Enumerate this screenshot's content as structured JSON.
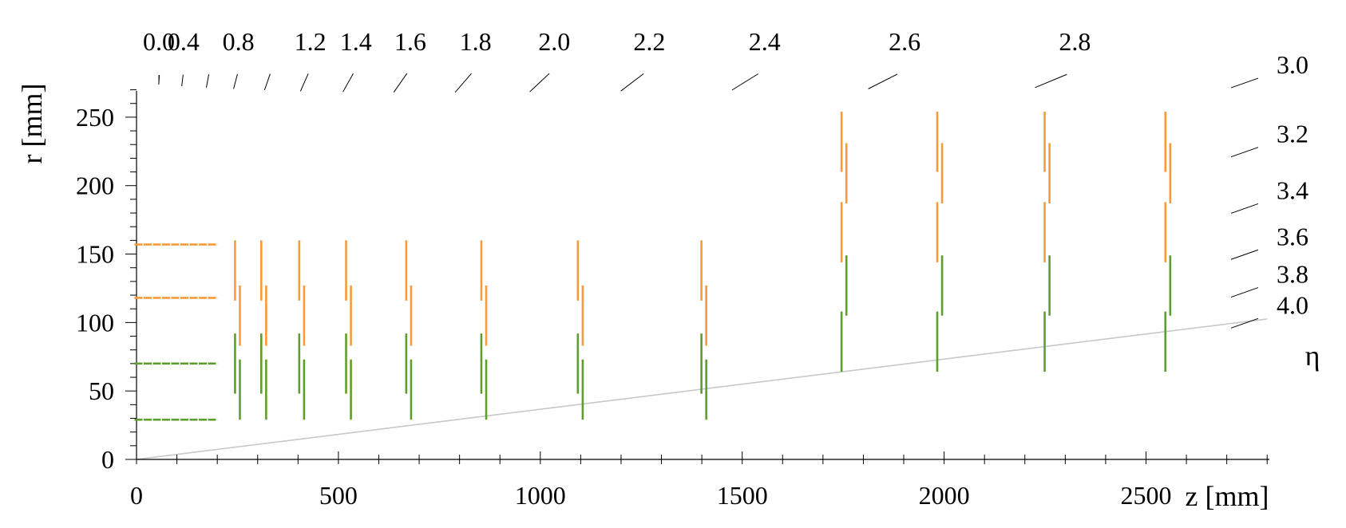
{
  "chart_data": {
    "type": "line",
    "xlabel": "z [mm]",
    "ylabel": "r [mm]",
    "xlim": [
      0,
      2800
    ],
    "ylim": [
      0,
      270
    ],
    "x_ticks": [
      0,
      500,
      1000,
      1500,
      2000,
      2500
    ],
    "x_tick_labels": [
      "0",
      "500",
      "1000",
      "1500",
      "2000",
      "2500"
    ],
    "y_ticks": [
      0,
      50,
      100,
      150,
      200,
      250
    ],
    "y_tick_labels": [
      "0",
      "50",
      "100",
      "150",
      "200",
      "250"
    ],
    "eta_axis_label": "η",
    "eta_top_labels": [
      "0.0",
      "0.4",
      "0.8",
      "1.2",
      "1.4",
      "1.6",
      "1.8",
      "2.0",
      "2.2",
      "2.4",
      "2.6",
      "2.8"
    ],
    "eta_top_values": [
      0.0,
      0.4,
      0.8,
      1.2,
      1.4,
      1.6,
      1.8,
      2.0,
      2.2,
      2.4,
      2.6,
      2.8
    ],
    "eta_top_minor": [
      0.2,
      0.6,
      1.0
    ],
    "eta_right_labels": [
      "3.0",
      "3.2",
      "3.4",
      "3.6",
      "3.8",
      "4.0"
    ],
    "eta_right_values": [
      3.0,
      3.2,
      3.4,
      3.6,
      3.8,
      4.0
    ],
    "reference_line": {
      "eta": 4.0
    },
    "colors": {
      "outer": "#f79a3a",
      "inner": "#5e9e2c",
      "reference": "#c8c8c8"
    },
    "barrel_layers": [
      {
        "r": 157,
        "z_min": -5,
        "z_max": 200,
        "color": "outer"
      },
      {
        "r": 118,
        "z_min": -5,
        "z_max": 200,
        "color": "outer"
      },
      {
        "r": 70,
        "z_min": -5,
        "z_max": 200,
        "color": "inner"
      },
      {
        "r": 29,
        "z_min": -5,
        "z_max": 200,
        "color": "inner"
      }
    ],
    "disks": [
      {
        "z": 250,
        "segments": [
          {
            "dz": -6,
            "r_min": 48,
            "r_max": 92,
            "color": "inner"
          },
          {
            "dz": 6,
            "r_min": 29,
            "r_max": 73,
            "color": "inner"
          },
          {
            "dz": 6,
            "r_min": 83,
            "r_max": 127,
            "color": "outer"
          },
          {
            "dz": -6,
            "r_min": 116,
            "r_max": 160,
            "color": "outer"
          }
        ]
      },
      {
        "z": 315,
        "segments": [
          {
            "dz": -6,
            "r_min": 48,
            "r_max": 92,
            "color": "inner"
          },
          {
            "dz": 6,
            "r_min": 29,
            "r_max": 73,
            "color": "inner"
          },
          {
            "dz": 6,
            "r_min": 83,
            "r_max": 127,
            "color": "outer"
          },
          {
            "dz": -6,
            "r_min": 116,
            "r_max": 160,
            "color": "outer"
          }
        ]
      },
      {
        "z": 409,
        "segments": [
          {
            "dz": -6,
            "r_min": 48,
            "r_max": 92,
            "color": "inner"
          },
          {
            "dz": 6,
            "r_min": 29,
            "r_max": 73,
            "color": "inner"
          },
          {
            "dz": 6,
            "r_min": 83,
            "r_max": 127,
            "color": "outer"
          },
          {
            "dz": -6,
            "r_min": 116,
            "r_max": 160,
            "color": "outer"
          }
        ]
      },
      {
        "z": 525,
        "segments": [
          {
            "dz": -6,
            "r_min": 48,
            "r_max": 92,
            "color": "inner"
          },
          {
            "dz": 6,
            "r_min": 29,
            "r_max": 73,
            "color": "inner"
          },
          {
            "dz": 6,
            "r_min": 83,
            "r_max": 127,
            "color": "outer"
          },
          {
            "dz": -6,
            "r_min": 116,
            "r_max": 160,
            "color": "outer"
          }
        ]
      },
      {
        "z": 674,
        "segments": [
          {
            "dz": -6,
            "r_min": 48,
            "r_max": 92,
            "color": "inner"
          },
          {
            "dz": 6,
            "r_min": 29,
            "r_max": 73,
            "color": "inner"
          },
          {
            "dz": 6,
            "r_min": 83,
            "r_max": 127,
            "color": "outer"
          },
          {
            "dz": -6,
            "r_min": 116,
            "r_max": 160,
            "color": "outer"
          }
        ]
      },
      {
        "z": 860,
        "segments": [
          {
            "dz": -6,
            "r_min": 48,
            "r_max": 92,
            "color": "inner"
          },
          {
            "dz": 6,
            "r_min": 29,
            "r_max": 73,
            "color": "inner"
          },
          {
            "dz": 6,
            "r_min": 83,
            "r_max": 127,
            "color": "outer"
          },
          {
            "dz": -6,
            "r_min": 116,
            "r_max": 160,
            "color": "outer"
          }
        ]
      },
      {
        "z": 1099,
        "segments": [
          {
            "dz": -6,
            "r_min": 48,
            "r_max": 92,
            "color": "inner"
          },
          {
            "dz": 6,
            "r_min": 29,
            "r_max": 73,
            "color": "inner"
          },
          {
            "dz": 6,
            "r_min": 83,
            "r_max": 127,
            "color": "outer"
          },
          {
            "dz": -6,
            "r_min": 116,
            "r_max": 160,
            "color": "outer"
          }
        ]
      },
      {
        "z": 1405,
        "segments": [
          {
            "dz": -6,
            "r_min": 48,
            "r_max": 92,
            "color": "inner"
          },
          {
            "dz": 6,
            "r_min": 29,
            "r_max": 73,
            "color": "inner"
          },
          {
            "dz": 6,
            "r_min": 83,
            "r_max": 127,
            "color": "outer"
          },
          {
            "dz": -6,
            "r_min": 116,
            "r_max": 160,
            "color": "outer"
          }
        ]
      },
      {
        "z": 1752,
        "segments": [
          {
            "dz": -6,
            "r_min": 64,
            "r_max": 108,
            "color": "inner"
          },
          {
            "dz": 6,
            "r_min": 105,
            "r_max": 149,
            "color": "inner"
          },
          {
            "dz": -6,
            "r_min": 144,
            "r_max": 188,
            "color": "outer"
          },
          {
            "dz": 6,
            "r_min": 187,
            "r_max": 231,
            "color": "outer"
          },
          {
            "dz": -6,
            "r_min": 210,
            "r_max": 254,
            "color": "outer"
          }
        ]
      },
      {
        "z": 1989,
        "segments": [
          {
            "dz": -6,
            "r_min": 64,
            "r_max": 108,
            "color": "inner"
          },
          {
            "dz": 6,
            "r_min": 105,
            "r_max": 149,
            "color": "inner"
          },
          {
            "dz": -6,
            "r_min": 144,
            "r_max": 188,
            "color": "outer"
          },
          {
            "dz": 6,
            "r_min": 187,
            "r_max": 231,
            "color": "outer"
          },
          {
            "dz": -6,
            "r_min": 210,
            "r_max": 254,
            "color": "outer"
          }
        ]
      },
      {
        "z": 2255,
        "segments": [
          {
            "dz": -6,
            "r_min": 64,
            "r_max": 108,
            "color": "inner"
          },
          {
            "dz": 6,
            "r_min": 105,
            "r_max": 149,
            "color": "inner"
          },
          {
            "dz": -6,
            "r_min": 144,
            "r_max": 188,
            "color": "outer"
          },
          {
            "dz": 6,
            "r_min": 187,
            "r_max": 231,
            "color": "outer"
          },
          {
            "dz": -6,
            "r_min": 210,
            "r_max": 254,
            "color": "outer"
          }
        ]
      },
      {
        "z": 2554,
        "segments": [
          {
            "dz": -6,
            "r_min": 64,
            "r_max": 108,
            "color": "inner"
          },
          {
            "dz": 6,
            "r_min": 105,
            "r_max": 149,
            "color": "inner"
          },
          {
            "dz": -6,
            "r_min": 144,
            "r_max": 188,
            "color": "outer"
          },
          {
            "dz": 6,
            "r_min": 187,
            "r_max": 231,
            "color": "outer"
          },
          {
            "dz": -6,
            "r_min": 210,
            "r_max": 254,
            "color": "outer"
          }
        ]
      }
    ]
  }
}
